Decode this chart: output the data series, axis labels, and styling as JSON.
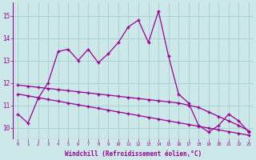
{
  "xlabel": "Windchill (Refroidissement éolien,°C)",
  "x": [
    0,
    1,
    2,
    3,
    4,
    5,
    6,
    7,
    8,
    9,
    10,
    11,
    12,
    13,
    14,
    15,
    16,
    17,
    18,
    19,
    20,
    21,
    22,
    23
  ],
  "line1": [
    10.6,
    10.2,
    11.3,
    12.0,
    13.4,
    13.5,
    13.0,
    13.5,
    12.9,
    13.3,
    13.8,
    14.5,
    14.8,
    13.8,
    15.2,
    13.2,
    11.5,
    11.1,
    10.1,
    9.8,
    10.1,
    10.6,
    10.3,
    9.8
  ],
  "line2": [
    11.9,
    11.85,
    11.8,
    11.75,
    11.7,
    11.65,
    11.6,
    11.55,
    11.5,
    11.45,
    11.4,
    11.35,
    11.3,
    11.25,
    11.2,
    11.15,
    11.1,
    11.0,
    10.9,
    10.7,
    10.5,
    10.3,
    10.1,
    9.85
  ],
  "line3": [
    11.5,
    11.42,
    11.34,
    11.26,
    11.18,
    11.1,
    11.02,
    10.94,
    10.86,
    10.78,
    10.7,
    10.62,
    10.54,
    10.46,
    10.38,
    10.3,
    10.22,
    10.14,
    10.06,
    9.98,
    9.9,
    9.82,
    9.74,
    9.66
  ],
  "color": "#990099",
  "bg_color": "#cce8e8",
  "grid_color": "#a8cece",
  "ylim": [
    9.5,
    15.6
  ],
  "yticks": [
    10,
    11,
    12,
    13,
    14,
    15
  ],
  "marker_size": 3
}
